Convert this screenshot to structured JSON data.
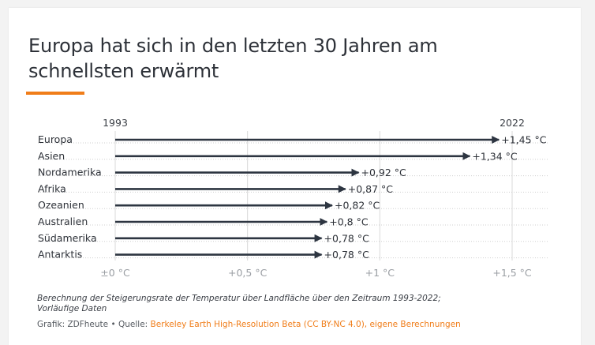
{
  "header": {
    "title_line1": "Europa hat sich in den letzten 30 Jahren am",
    "title_line2": "schnellsten erwärmt"
  },
  "footer": {
    "note_line1": "Berechnung der Steigerungsrate der Temperatur über Landfläche über den Zeitraum 1993-2022;",
    "note_line2": "Vorläufige Daten",
    "source_prefix": "Grafik: ZDFheute • Quelle: ",
    "source_link": "Berkeley Earth High-Resolution Beta (CC BY-NC 4.0), eigene Berechnungen"
  },
  "colors": {
    "accent": "#f07d19",
    "arrow": "#2d3541",
    "grid": "#d4d4d4",
    "text": "#2d3138"
  },
  "chart_data": {
    "type": "bar",
    "style": "arrow",
    "start_label": "1993",
    "end_label": "2022",
    "categories": [
      "Europa",
      "Asien",
      "Nordamerika",
      "Afrika",
      "Ozeanien",
      "Australien",
      "Südamerika",
      "Antarktis"
    ],
    "values": [
      1.45,
      1.34,
      0.92,
      0.87,
      0.82,
      0.8,
      0.78,
      0.78
    ],
    "value_labels": [
      "+1,45 °C",
      "+1,34 °C",
      "+0,92 °C",
      "+0,87 °C",
      "+0,82 °C",
      "+0,8 °C",
      "+0,78 °C",
      "+0,78 °C"
    ],
    "xlim": [
      0,
      1.5
    ],
    "x_ticks": [
      0,
      0.5,
      1,
      1.5
    ],
    "x_tick_labels": [
      "±0 °C",
      "+0,5 °C",
      "+1 °C",
      "+1,5 °C"
    ],
    "grid": true
  }
}
